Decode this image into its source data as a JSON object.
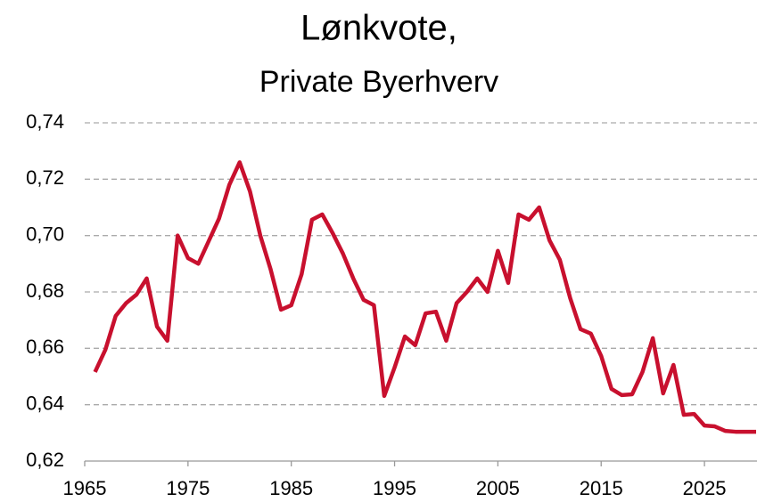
{
  "chart_data": {
    "type": "line",
    "title": "Lønkvote,",
    "subtitle": "Private Byerhverv",
    "x": [
      1966,
      1967,
      1968,
      1969,
      1970,
      1971,
      1972,
      1973,
      1974,
      1975,
      1976,
      1977,
      1978,
      1979,
      1980,
      1981,
      1982,
      1983,
      1984,
      1985,
      1986,
      1987,
      1988,
      1989,
      1990,
      1991,
      1992,
      1993,
      1994,
      1995,
      1996,
      1997,
      1998,
      1999,
      2000,
      2001,
      2002,
      2003,
      2004,
      2005,
      2006,
      2007,
      2008,
      2009,
      2010,
      2011,
      2012,
      2013,
      2014,
      2015,
      2016,
      2017,
      2018,
      2019,
      2020,
      2021,
      2022,
      2023,
      2024,
      2025,
      2026,
      2027,
      2028,
      2029,
      2030
    ],
    "series": [
      {
        "name": "Lønkvote",
        "color": "#c8102e",
        "values": [
          0.6516,
          0.6595,
          0.6715,
          0.676,
          0.679,
          0.6848,
          0.6677,
          0.6627,
          0.7,
          0.692,
          0.69,
          0.698,
          0.706,
          0.718,
          0.726,
          0.7157,
          0.7,
          0.688,
          0.6737,
          0.6753,
          0.6863,
          0.7056,
          0.7075,
          0.7009,
          0.6936,
          0.6848,
          0.6772,
          0.6753,
          0.6431,
          0.6532,
          0.6642,
          0.6611,
          0.6724,
          0.673,
          0.6627,
          0.676,
          0.68,
          0.6848,
          0.68,
          0.6946,
          0.6832,
          0.7075,
          0.7056,
          0.71,
          0.6983,
          0.6914,
          0.6778,
          0.6668,
          0.6652,
          0.6573,
          0.6456,
          0.6434,
          0.6437,
          0.6516,
          0.6636,
          0.644,
          0.6541,
          0.6364,
          0.6367,
          0.6326,
          0.6323,
          0.6307,
          0.6304,
          0.6304,
          0.6304
        ]
      }
    ],
    "xlim": [
      1965,
      2030
    ],
    "xticks": [
      1965,
      1975,
      1985,
      1995,
      2005,
      2015,
      2025
    ],
    "ylim": [
      0.62,
      0.74
    ],
    "yticks": [
      {
        "value": 0.62,
        "label": "0,62"
      },
      {
        "value": 0.64,
        "label": "0,64"
      },
      {
        "value": 0.66,
        "label": "0,66"
      },
      {
        "value": 0.68,
        "label": "0,68"
      },
      {
        "value": 0.7,
        "label": "0,70"
      },
      {
        "value": 0.72,
        "label": "0,72"
      },
      {
        "value": 0.74,
        "label": "0,74"
      }
    ],
    "grid": true
  }
}
